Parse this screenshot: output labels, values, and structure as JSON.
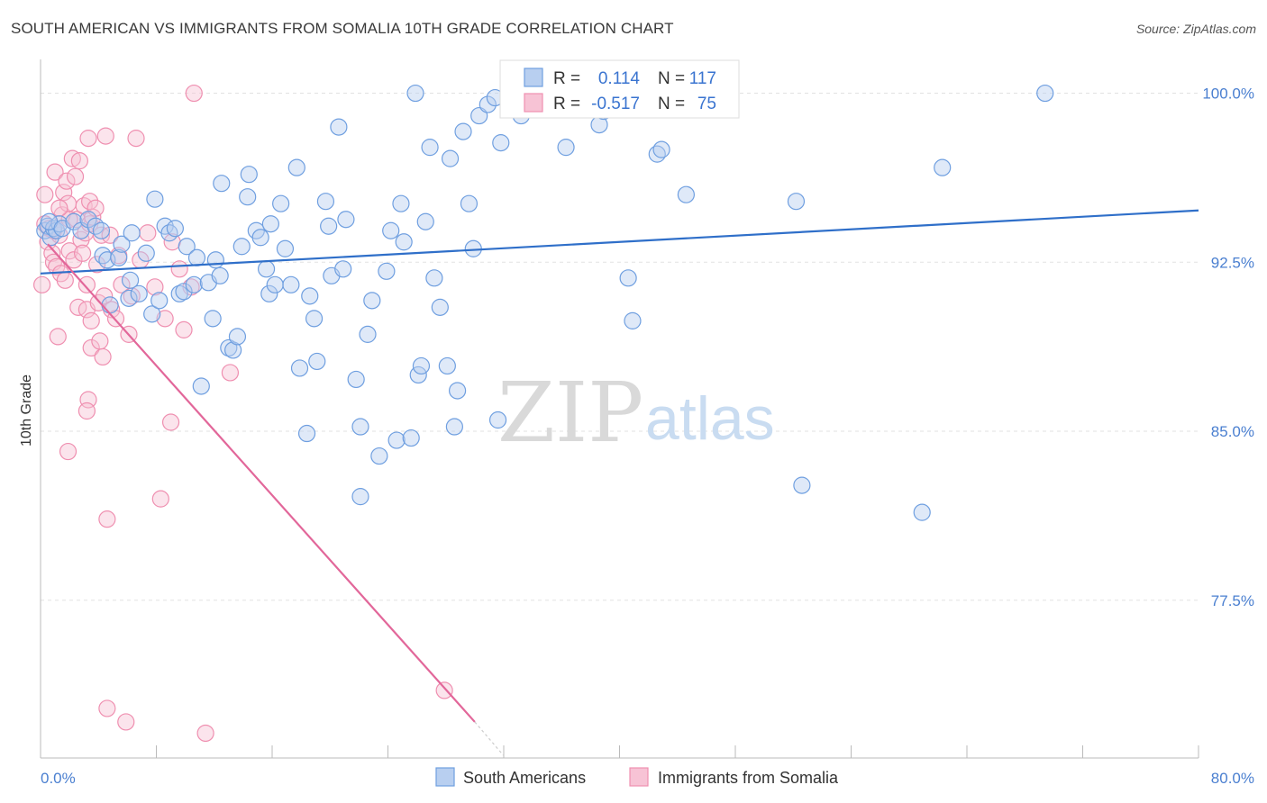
{
  "header": {
    "title": "SOUTH AMERICAN VS IMMIGRANTS FROM SOMALIA 10TH GRADE CORRELATION CHART",
    "source": "Source: ZipAtlas.com"
  },
  "watermark": {
    "zip": "ZIP",
    "atlas": "atlas"
  },
  "stats_box": {
    "rows": [
      {
        "r_label": "R =",
        "r_value": "0.114",
        "n_label": "N =",
        "n_value": "117"
      },
      {
        "r_label": "R =",
        "r_value": "-0.517",
        "n_label": "N =",
        "n_value": "75"
      }
    ]
  },
  "colors": {
    "blue": "#6f9fe0",
    "blue_fill": "#b8cff0",
    "blue_line": "#2f6fc9",
    "pink": "#ef8fb0",
    "pink_fill": "#f7c3d5",
    "pink_line": "#e2679a",
    "grid": "#e2e2e2",
    "axis_label": "#4a7fd0"
  },
  "chart_data": {
    "type": "scatter",
    "title": "SOUTH AMERICAN VS IMMIGRANTS FROM SOMALIA 10TH GRADE CORRELATION CHART",
    "xlabel": "",
    "ylabel": "10th Grade",
    "xlim": [
      0,
      80
    ],
    "ylim": [
      70.5,
      101.5
    ],
    "x_tick_labels": [
      "0.0%",
      "80.0%"
    ],
    "y_ticks": [
      77.5,
      85.0,
      92.5,
      100.0
    ],
    "y_tick_labels": [
      "77.5%",
      "85.0%",
      "92.5%",
      "100.0%"
    ],
    "grid": true,
    "legend": "bottom-center",
    "legend_entries": [
      "South Americans",
      "Immigrants from Somalia"
    ],
    "series": [
      {
        "name": "South Americans",
        "color": "#6f9fe0",
        "trend": {
          "x": [
            0,
            80
          ],
          "y": [
            92.0,
            94.8
          ]
        },
        "points": [
          [
            0.3,
            93.9
          ],
          [
            0.5,
            94.1
          ],
          [
            0.7,
            93.6
          ],
          [
            0.9,
            94.0
          ],
          [
            1.1,
            93.9
          ],
          [
            1.3,
            94.2
          ],
          [
            0.6,
            94.3
          ],
          [
            1.5,
            94.0
          ],
          [
            2.3,
            94.3
          ],
          [
            2.8,
            93.9
          ],
          [
            3.3,
            94.4
          ],
          [
            3.8,
            94.1
          ],
          [
            4.2,
            93.9
          ],
          [
            4.3,
            92.8
          ],
          [
            4.6,
            92.6
          ],
          [
            5.4,
            92.7
          ],
          [
            4.8,
            90.6
          ],
          [
            5.6,
            93.3
          ],
          [
            6.3,
            93.8
          ],
          [
            6.2,
            91.7
          ],
          [
            6.1,
            90.9
          ],
          [
            6.8,
            91.1
          ],
          [
            7.3,
            92.9
          ],
          [
            7.7,
            90.2
          ],
          [
            7.9,
            95.3
          ],
          [
            8.2,
            90.8
          ],
          [
            8.6,
            94.1
          ],
          [
            8.9,
            93.8
          ],
          [
            9.3,
            94.0
          ],
          [
            9.6,
            91.1
          ],
          [
            9.9,
            91.2
          ],
          [
            10.1,
            93.2
          ],
          [
            10.6,
            91.5
          ],
          [
            10.8,
            92.7
          ],
          [
            11.1,
            87.0
          ],
          [
            11.6,
            91.6
          ],
          [
            11.9,
            90.0
          ],
          [
            12.1,
            92.6
          ],
          [
            12.4,
            91.9
          ],
          [
            12.5,
            96.0
          ],
          [
            13.0,
            88.7
          ],
          [
            13.3,
            88.6
          ],
          [
            13.6,
            89.2
          ],
          [
            13.9,
            93.2
          ],
          [
            14.3,
            95.4
          ],
          [
            14.4,
            96.4
          ],
          [
            14.9,
            93.9
          ],
          [
            15.2,
            93.6
          ],
          [
            15.6,
            92.2
          ],
          [
            15.9,
            94.2
          ],
          [
            15.8,
            91.1
          ],
          [
            16.2,
            91.5
          ],
          [
            16.6,
            95.1
          ],
          [
            16.9,
            93.1
          ],
          [
            17.3,
            91.5
          ],
          [
            17.7,
            96.7
          ],
          [
            17.9,
            87.8
          ],
          [
            18.4,
            84.9
          ],
          [
            18.6,
            91.0
          ],
          [
            18.9,
            90.0
          ],
          [
            19.1,
            88.1
          ],
          [
            19.7,
            95.2
          ],
          [
            19.9,
            94.1
          ],
          [
            20.1,
            91.9
          ],
          [
            20.6,
            98.5
          ],
          [
            20.9,
            92.2
          ],
          [
            21.1,
            94.4
          ],
          [
            21.8,
            87.3
          ],
          [
            22.1,
            85.2
          ],
          [
            22.1,
            82.1
          ],
          [
            22.6,
            89.3
          ],
          [
            22.9,
            90.8
          ],
          [
            23.4,
            83.9
          ],
          [
            23.9,
            92.1
          ],
          [
            24.2,
            93.9
          ],
          [
            24.6,
            84.6
          ],
          [
            24.9,
            95.1
          ],
          [
            25.1,
            93.4
          ],
          [
            25.6,
            84.7
          ],
          [
            26.1,
            87.5
          ],
          [
            26.3,
            87.9
          ],
          [
            26.6,
            94.3
          ],
          [
            26.9,
            97.6
          ],
          [
            27.2,
            91.8
          ],
          [
            27.6,
            90.5
          ],
          [
            28.1,
            87.9
          ],
          [
            28.3,
            97.1
          ],
          [
            28.6,
            85.2
          ],
          [
            28.8,
            86.8
          ],
          [
            29.2,
            98.3
          ],
          [
            29.6,
            95.1
          ],
          [
            29.9,
            93.1
          ],
          [
            30.3,
            99.0
          ],
          [
            30.9,
            99.5
          ],
          [
            31.6,
            85.5
          ],
          [
            31.8,
            97.8
          ],
          [
            33.2,
            99.0
          ],
          [
            33.8,
            100.0
          ],
          [
            34.0,
            99.5
          ],
          [
            36.3,
            97.6
          ],
          [
            37.9,
            100.0
          ],
          [
            38.6,
            98.6
          ],
          [
            38.9,
            99.2
          ],
          [
            40.6,
            91.8
          ],
          [
            40.9,
            89.9
          ],
          [
            42.6,
            97.3
          ],
          [
            42.9,
            97.5
          ],
          [
            44.6,
            95.5
          ],
          [
            52.2,
            95.2
          ],
          [
            52.6,
            82.6
          ],
          [
            60.9,
            81.4
          ],
          [
            62.3,
            96.7
          ],
          [
            69.4,
            100.0
          ],
          [
            25.9,
            100.0
          ],
          [
            31.4,
            99.8
          ]
        ]
      },
      {
        "name": "Immigrants from Somalia",
        "color": "#ef8fb0",
        "trend": {
          "x": [
            0.5,
            30.0
          ],
          "y": [
            93.3,
            72.1
          ],
          "dashed_to": [
            32.0,
            70.6
          ]
        },
        "points": [
          [
            0.1,
            91.5
          ],
          [
            0.3,
            94.2
          ],
          [
            0.3,
            95.5
          ],
          [
            0.5,
            93.4
          ],
          [
            0.6,
            94.0
          ],
          [
            0.8,
            92.9
          ],
          [
            0.9,
            92.5
          ],
          [
            1.0,
            96.5
          ],
          [
            1.1,
            92.3
          ],
          [
            1.2,
            89.2
          ],
          [
            1.3,
            93.7
          ],
          [
            1.4,
            92.0
          ],
          [
            1.5,
            94.6
          ],
          [
            1.6,
            95.6
          ],
          [
            1.7,
            91.7
          ],
          [
            1.8,
            96.1
          ],
          [
            1.9,
            95.1
          ],
          [
            1.9,
            84.1
          ],
          [
            2.0,
            93.0
          ],
          [
            2.2,
            97.1
          ],
          [
            2.3,
            92.6
          ],
          [
            2.4,
            96.3
          ],
          [
            2.5,
            94.4
          ],
          [
            2.6,
            90.5
          ],
          [
            2.7,
            97.0
          ],
          [
            2.8,
            93.5
          ],
          [
            2.9,
            92.9
          ],
          [
            3.0,
            95.0
          ],
          [
            3.1,
            93.8
          ],
          [
            3.2,
            91.5
          ],
          [
            3.2,
            90.4
          ],
          [
            3.4,
            95.2
          ],
          [
            3.5,
            89.9
          ],
          [
            3.3,
            98.0
          ],
          [
            3.4,
            94.2
          ],
          [
            3.3,
            86.4
          ],
          [
            3.2,
            85.9
          ],
          [
            3.5,
            88.7
          ],
          [
            3.6,
            94.5
          ],
          [
            3.8,
            94.9
          ],
          [
            3.9,
            92.4
          ],
          [
            4.0,
            90.7
          ],
          [
            4.1,
            89.0
          ],
          [
            4.2,
            93.7
          ],
          [
            4.3,
            88.3
          ],
          [
            4.4,
            91.0
          ],
          [
            4.5,
            98.1
          ],
          [
            4.6,
            81.1
          ],
          [
            4.6,
            72.7
          ],
          [
            4.8,
            93.7
          ],
          [
            4.9,
            90.4
          ],
          [
            5.2,
            90.0
          ],
          [
            5.4,
            92.8
          ],
          [
            5.6,
            91.5
          ],
          [
            5.9,
            72.1
          ],
          [
            6.1,
            89.3
          ],
          [
            6.3,
            91.0
          ],
          [
            6.6,
            98.0
          ],
          [
            6.9,
            92.6
          ],
          [
            7.4,
            93.8
          ],
          [
            7.9,
            91.4
          ],
          [
            8.3,
            82.0
          ],
          [
            8.6,
            90.0
          ],
          [
            9.0,
            85.4
          ],
          [
            9.6,
            92.2
          ],
          [
            9.9,
            89.5
          ],
          [
            10.4,
            91.4
          ],
          [
            10.6,
            100.0
          ],
          [
            11.4,
            71.6
          ],
          [
            13.1,
            87.6
          ],
          [
            9.1,
            93.4
          ],
          [
            2.0,
            94.4
          ],
          [
            0.9,
            93.9
          ],
          [
            1.3,
            94.9
          ],
          [
            27.9,
            73.5
          ]
        ]
      }
    ]
  }
}
